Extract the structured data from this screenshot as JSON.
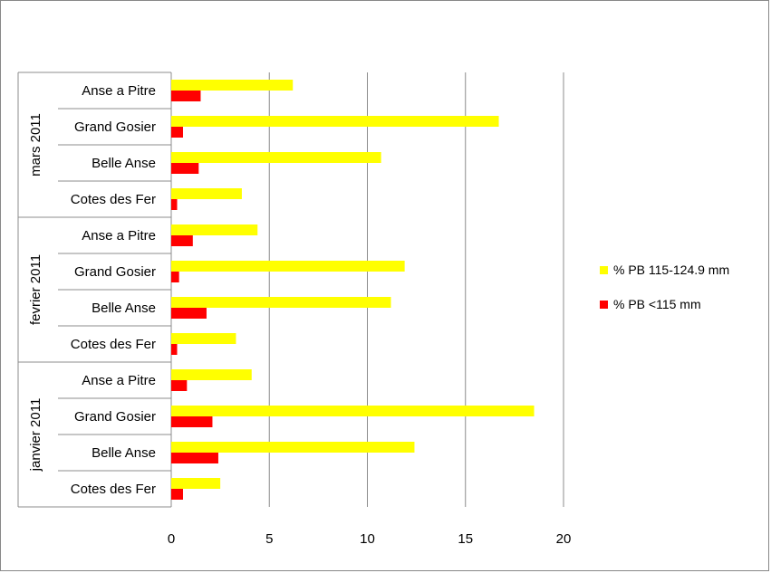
{
  "chart_data": {
    "type": "bar",
    "orientation": "horizontal",
    "xlim": [
      0,
      20
    ],
    "xticks": [
      "0",
      "5",
      "10",
      "15",
      "20"
    ],
    "grid": true,
    "legend_position": "right",
    "groups": [
      {
        "label": "mars 2011",
        "categories": [
          "Anse a Pitre",
          "Grand Gosier",
          "Belle Anse",
          "Cotes des Fer"
        ],
        "series_values": {
          "yellow": [
            6.2,
            16.7,
            10.7,
            3.6
          ],
          "red": [
            1.5,
            0.6,
            1.4,
            0.3
          ]
        }
      },
      {
        "label": "fevrier 2011",
        "categories": [
          "Anse a Pitre",
          "Grand Gosier",
          "Belle Anse",
          "Cotes des Fer"
        ],
        "series_values": {
          "yellow": [
            4.4,
            11.9,
            11.2,
            3.3
          ],
          "red": [
            1.1,
            0.4,
            1.8,
            0.3
          ]
        }
      },
      {
        "label": "janvier 2011",
        "categories": [
          "Anse a Pitre",
          "Grand Gosier",
          "Belle Anse",
          "Cotes des Fer"
        ],
        "series_values": {
          "yellow": [
            4.1,
            18.5,
            12.4,
            2.5
          ],
          "red": [
            0.8,
            2.1,
            2.4,
            0.6
          ]
        }
      }
    ],
    "series": [
      {
        "key": "yellow",
        "name": "% PB 115-124.9 mm",
        "color": "#ffff00"
      },
      {
        "key": "red",
        "name": "% PB <115 mm",
        "color": "#ff0000"
      }
    ]
  }
}
